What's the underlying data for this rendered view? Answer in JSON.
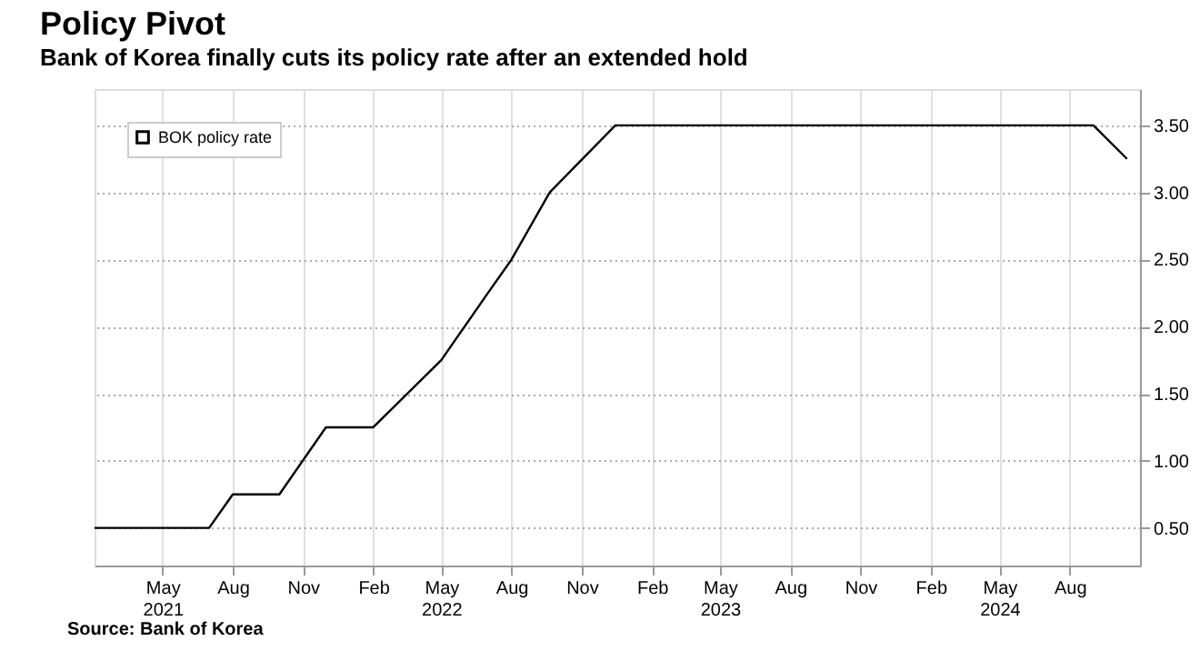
{
  "chart_data": {
    "type": "line",
    "title": "Policy Pivot",
    "subtitle": "Bank of Korea finally cuts its policy rate after an extended hold",
    "x": [
      "2021-02-01",
      "2021-07-01",
      "2021-08-01",
      "2021-10-01",
      "2021-12-01",
      "2022-02-01",
      "2022-05-01",
      "2022-07-01",
      "2022-08-01",
      "2022-09-20",
      "2022-12-15",
      "2024-09-01",
      "2024-10-15"
    ],
    "series": [
      {
        "name": "BOK policy rate",
        "color": "#000000",
        "values": [
          0.5,
          0.5,
          0.75,
          0.75,
          1.25,
          1.25,
          1.75,
          2.25,
          2.5,
          3.0,
          3.5,
          3.5,
          3.25
        ]
      }
    ],
    "xlim": [
      "2021-02-01",
      "2024-11-01"
    ],
    "xticks": [
      {
        "value": "2021-05-01",
        "label": "May\n2021"
      },
      {
        "value": "2021-08-01",
        "label": "Aug"
      },
      {
        "value": "2021-11-01",
        "label": "Nov"
      },
      {
        "value": "2022-02-01",
        "label": "Feb"
      },
      {
        "value": "2022-05-01",
        "label": "May\n2022"
      },
      {
        "value": "2022-08-01",
        "label": "Aug"
      },
      {
        "value": "2022-11-01",
        "label": "Nov"
      },
      {
        "value": "2023-02-01",
        "label": "Feb"
      },
      {
        "value": "2023-05-01",
        "label": "May\n2023"
      },
      {
        "value": "2023-08-01",
        "label": "Aug"
      },
      {
        "value": "2023-11-01",
        "label": "Nov"
      },
      {
        "value": "2024-02-01",
        "label": "Feb"
      },
      {
        "value": "2024-05-01",
        "label": "May\n2024"
      },
      {
        "value": "2024-08-01",
        "label": "Aug"
      }
    ],
    "ylim": [
      0.22,
      3.77
    ],
    "yticks": [
      {
        "value": 0.5,
        "label": "0.50"
      },
      {
        "value": 1.0,
        "label": "1.00"
      },
      {
        "value": 1.5,
        "label": "1.50"
      },
      {
        "value": 2.0,
        "label": "2.00"
      },
      {
        "value": 2.5,
        "label": "2.50"
      },
      {
        "value": 3.0,
        "label": "3.00"
      },
      {
        "value": 3.5,
        "label": "3.50"
      }
    ],
    "grid": true,
    "legend": "top left",
    "marker": "none",
    "line_style": "solid",
    "annotations": [
      "Source: Bank of Korea"
    ]
  }
}
